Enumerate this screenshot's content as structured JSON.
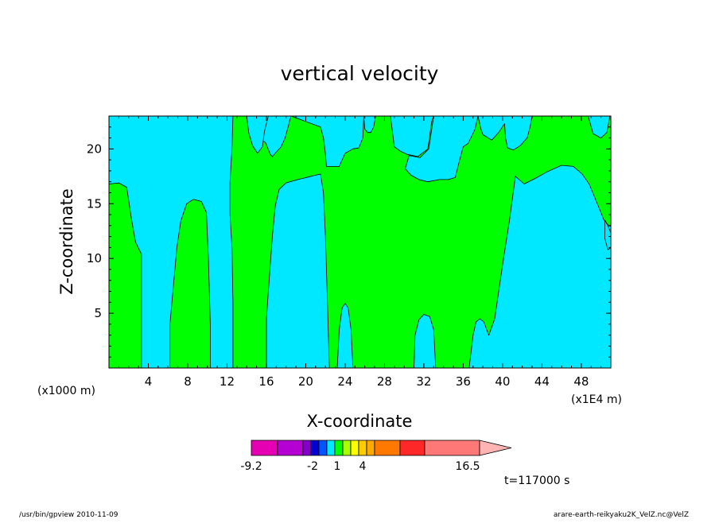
{
  "chart_data": {
    "type": "contour",
    "title": "vertical velocity",
    "xlabel": "X-coordinate",
    "ylabel": "Z-coordinate",
    "x_unit_left": "(x1000 m)",
    "x_unit_right": "(x1E4 m)",
    "xlim": [
      0,
      51
    ],
    "ylim": [
      0,
      23
    ],
    "x_ticks": [
      4,
      8,
      12,
      16,
      20,
      24,
      28,
      32,
      36,
      40,
      44,
      48
    ],
    "y_ticks": [
      5,
      10,
      15,
      20
    ],
    "x_tick_labels": [
      "4",
      "8",
      "12",
      "16",
      "20",
      "24",
      "28",
      "32",
      "36",
      "40",
      "44",
      "48"
    ],
    "y_tick_labels": [
      "5",
      "10",
      "15",
      "20"
    ],
    "colors": {
      "positive": "#00ff00",
      "negative": "#00e8ff",
      "contour_line": "#000000"
    },
    "regions": [
      {
        "sign": "positive",
        "polygon": [
          [
            0,
            0
          ],
          [
            3.3,
            0
          ],
          [
            3.3,
            10.4
          ],
          [
            2.7,
            11.5
          ],
          [
            2.3,
            13.5
          ],
          [
            1.8,
            16.5
          ],
          [
            1.0,
            16.9
          ],
          [
            0,
            16.8
          ]
        ]
      },
      {
        "sign": "positive",
        "polygon": [
          [
            6.2,
            0
          ],
          [
            10.3,
            0
          ],
          [
            10.3,
            4
          ],
          [
            10.1,
            10
          ],
          [
            9.9,
            14.2
          ],
          [
            9.4,
            15.2
          ],
          [
            8.6,
            15.4
          ],
          [
            7.9,
            15.0
          ],
          [
            7.3,
            13.4
          ],
          [
            6.9,
            11
          ],
          [
            6.5,
            7
          ],
          [
            6.2,
            4
          ]
        ]
      },
      {
        "sign": "positive",
        "polygon": [
          [
            12.6,
            0
          ],
          [
            16.0,
            0
          ],
          [
            16.0,
            4.5
          ],
          [
            16.2,
            7
          ],
          [
            16.6,
            12
          ],
          [
            16.9,
            14.8
          ],
          [
            17.3,
            16.3
          ],
          [
            18.0,
            16.9
          ],
          [
            19.2,
            17.2
          ],
          [
            20.1,
            17.4
          ],
          [
            21.0,
            17.6
          ],
          [
            21.5,
            17.7
          ],
          [
            21.8,
            16
          ],
          [
            22.0,
            12
          ],
          [
            22.2,
            6
          ],
          [
            22.4,
            0
          ],
          [
            23.2,
            0
          ],
          [
            23.4,
            3.5
          ],
          [
            23.7,
            5.5
          ],
          [
            24.0,
            5.9
          ],
          [
            24.3,
            5.5
          ],
          [
            24.6,
            3.5
          ],
          [
            24.8,
            0
          ],
          [
            31.0,
            0
          ],
          [
            31.1,
            3
          ],
          [
            31.5,
            4.4
          ],
          [
            32.0,
            4.9
          ],
          [
            32.6,
            4.7
          ],
          [
            33.0,
            3.5
          ],
          [
            33.2,
            0
          ],
          [
            36.6,
            0
          ],
          [
            37.0,
            3
          ],
          [
            37.3,
            4.2
          ],
          [
            37.7,
            4.5
          ],
          [
            38.1,
            4.2
          ],
          [
            38.6,
            3
          ],
          [
            39.2,
            4.5
          ],
          [
            39.6,
            7
          ],
          [
            40.1,
            10
          ],
          [
            40.7,
            13.5
          ],
          [
            41.0,
            15.5
          ],
          [
            41.3,
            17.5
          ],
          [
            42.2,
            16.8
          ],
          [
            43.3,
            17.3
          ],
          [
            44.5,
            17.9
          ],
          [
            46.0,
            18.5
          ],
          [
            47.2,
            18.4
          ],
          [
            48.1,
            17.7
          ],
          [
            48.8,
            16.8
          ],
          [
            49.4,
            15.5
          ],
          [
            50.0,
            14.2
          ],
          [
            50.3,
            13.5
          ],
          [
            50.8,
            13.0
          ],
          [
            51,
            12.9
          ],
          [
            51,
            23
          ],
          [
            50.9,
            23
          ],
          [
            50.6,
            21.5
          ],
          [
            50.0,
            21.0
          ],
          [
            49.2,
            21.4
          ],
          [
            48.7,
            23
          ],
          [
            43.0,
            23
          ],
          [
            42.8,
            22
          ],
          [
            42.5,
            21
          ],
          [
            41.8,
            20.3
          ],
          [
            41.1,
            19.9
          ],
          [
            40.5,
            20.1
          ],
          [
            40.3,
            21
          ],
          [
            40.2,
            22.3
          ],
          [
            39.6,
            21.5
          ],
          [
            38.9,
            20.8
          ],
          [
            38.0,
            21.3
          ],
          [
            37.8,
            21.8
          ],
          [
            37.5,
            23
          ],
          [
            33.0,
            23
          ],
          [
            32.8,
            22.5
          ],
          [
            32.4,
            20
          ],
          [
            31.4,
            19.3
          ],
          [
            30.3,
            19.5
          ],
          [
            29.6,
            19.8
          ],
          [
            29.0,
            20.2
          ],
          [
            28.6,
            23
          ],
          [
            27.1,
            23
          ],
          [
            26.9,
            22
          ],
          [
            26.6,
            21.5
          ],
          [
            26.3,
            21.5
          ],
          [
            26.0,
            21.8
          ],
          [
            25.9,
            23
          ],
          [
            18.5,
            23
          ],
          [
            17.9,
            21
          ],
          [
            17.5,
            20.2
          ],
          [
            17.0,
            19.7
          ],
          [
            16.6,
            19.3
          ],
          [
            16.4,
            19.5
          ],
          [
            15.9,
            20.6
          ],
          [
            15.2,
            20.8
          ],
          [
            14.5,
            23
          ],
          [
            12.6,
            23
          ],
          [
            12.5,
            20
          ],
          [
            12.3,
            17
          ],
          [
            12.3,
            14
          ],
          [
            12.5,
            11
          ],
          [
            12.6,
            6
          ]
        ]
      },
      {
        "sign": "negative",
        "polygon": [
          [
            14.0,
            23
          ],
          [
            14.2,
            21.5
          ],
          [
            14.6,
            20.3
          ],
          [
            15.1,
            19.6
          ],
          [
            15.6,
            20.2
          ],
          [
            15.8,
            21.6
          ],
          [
            16.2,
            23
          ]
        ]
      },
      {
        "sign": "negative",
        "polygon": [
          [
            18.5,
            23
          ],
          [
            25.9,
            23
          ],
          [
            25.8,
            21
          ],
          [
            25.4,
            20.1
          ],
          [
            24.8,
            20.0
          ],
          [
            24.0,
            19.6
          ],
          [
            23.4,
            18.4
          ],
          [
            22.6,
            18.4
          ],
          [
            22.1,
            18.4
          ],
          [
            22.0,
            19.5
          ],
          [
            21.8,
            21
          ],
          [
            21.5,
            22
          ]
        ]
      },
      {
        "sign": "negative",
        "polygon": [
          [
            30.5,
            19.4
          ],
          [
            31.6,
            19.2
          ],
          [
            32.5,
            20
          ],
          [
            33.0,
            23
          ],
          [
            37.5,
            23
          ],
          [
            37.2,
            21.8
          ],
          [
            36.5,
            20.5
          ],
          [
            36.0,
            20.2
          ],
          [
            35.5,
            18.5
          ],
          [
            35.2,
            17.4
          ],
          [
            34.5,
            17.2
          ],
          [
            33.6,
            17.2
          ],
          [
            32.4,
            17.0
          ],
          [
            31.5,
            17.2
          ],
          [
            30.7,
            17.6
          ],
          [
            30.1,
            18.2
          ]
        ]
      },
      {
        "sign": "negative",
        "polygon": [
          [
            50.4,
            13.5
          ],
          [
            50.8,
            12.8
          ],
          [
            51,
            12.3
          ],
          [
            51,
            11.0
          ],
          [
            50.7,
            10.8
          ],
          [
            50.4,
            11.8
          ]
        ]
      }
    ],
    "colorbar": {
      "colors": [
        "#e600b4",
        "#b400d2",
        "#8200c8",
        "#0000d2",
        "#0055ff",
        "#00e8ff",
        "#00ff00",
        "#aaff00",
        "#ffff00",
        "#ffcc00",
        "#ffaa00",
        "#ff7800",
        "#ff2828",
        "#ff7878",
        "#ffb4b4"
      ],
      "tick_labels": [
        "-9.2",
        "-2",
        "1",
        "4",
        "16.5"
      ]
    },
    "time_label": "t=117000 s"
  },
  "footer": {
    "left": "/usr/bin/gpview  2010-11-09",
    "right": "arare-earth-reikyaku2K_VelZ.nc@VelZ"
  }
}
